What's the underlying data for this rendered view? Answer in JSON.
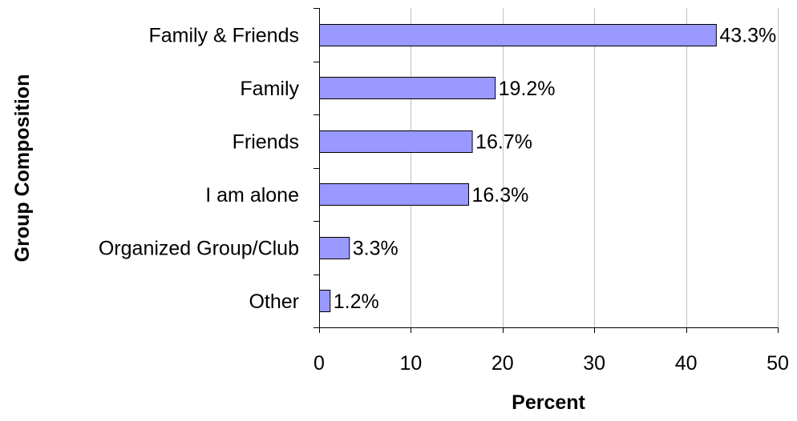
{
  "chart_data": {
    "type": "bar",
    "orientation": "horizontal",
    "categories": [
      "Family & Friends",
      "Family",
      "Friends",
      "I am alone",
      "Organized Group/Club",
      "Other"
    ],
    "values": [
      43.3,
      19.2,
      16.7,
      16.3,
      3.3,
      1.2
    ],
    "value_labels": [
      "43.3%",
      "19.2%",
      "16.7%",
      "16.3%",
      "3.3%",
      "1.2%"
    ],
    "title": "",
    "xlabel": "Percent",
    "ylabel": "Group Composition",
    "xlim": [
      0,
      50
    ],
    "xticks": [
      0,
      10,
      20,
      30,
      40,
      50
    ],
    "xtick_labels": [
      "0",
      "10",
      "20",
      "30",
      "40",
      "50"
    ],
    "grid": "vertical",
    "legend": "none",
    "colors": {
      "bar_fill": "#9999ff",
      "bar_stroke": "#000000",
      "grid": "#c0c0c0",
      "axis": "#000000"
    }
  }
}
